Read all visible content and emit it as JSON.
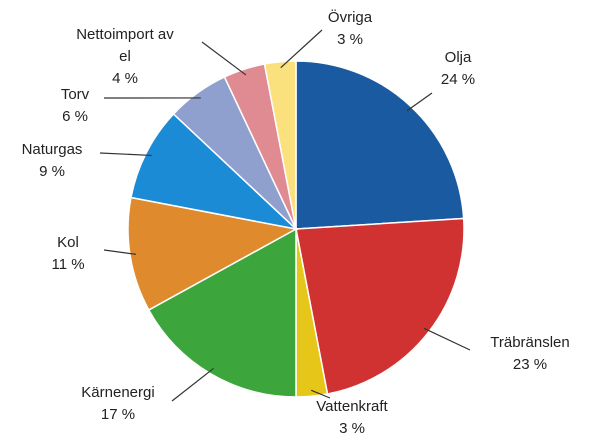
{
  "chart_data": {
    "type": "pie",
    "categories": [
      "Olja",
      "Träbränslen",
      "Vattenkraft",
      "Kärnenergi",
      "Kol",
      "Naturgas",
      "Torv",
      "Nettoimport av el",
      "Övriga"
    ],
    "values": [
      24,
      23,
      3,
      17,
      11,
      9,
      6,
      4,
      3
    ],
    "value_labels": [
      "24 %",
      "23 %",
      "3 %",
      "17 %",
      "11 %",
      "9 %",
      "6 %",
      "4 %",
      "3 %"
    ],
    "colors": [
      "#1a5aa0",
      "#d03232",
      "#e6c619",
      "#3ca63c",
      "#df8a2c",
      "#1b8bd6",
      "#8fa0cf",
      "#e08a92",
      "#fbe07e"
    ]
  }
}
